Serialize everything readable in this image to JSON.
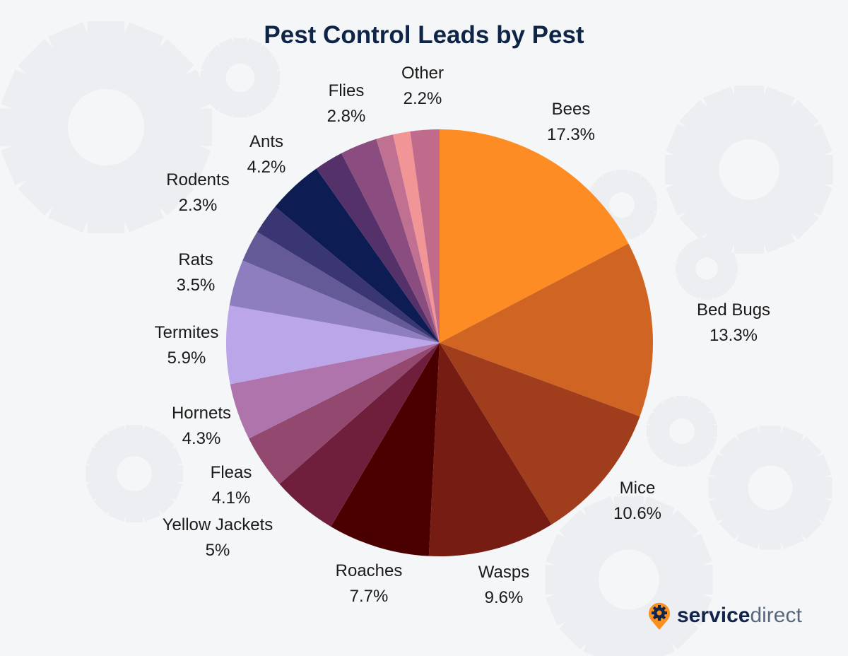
{
  "chart_data": {
    "type": "pie",
    "title": "Pest Control Leads by Pest",
    "start": "top",
    "direction": "clockwise",
    "slices": [
      {
        "label": "Bees",
        "value": 17.3,
        "value_label": "17.3%",
        "color": "#fd8c25"
      },
      {
        "label": "Bed Bugs",
        "value": 13.3,
        "value_label": "13.3%",
        "color": "#d06423"
      },
      {
        "label": "Mice",
        "value": 10.6,
        "value_label": "10.6%",
        "color": "#a03d1c"
      },
      {
        "label": "Wasps",
        "value": 9.6,
        "value_label": "9.6%",
        "color": "#771c13"
      },
      {
        "label": "Roaches",
        "value": 7.7,
        "value_label": "7.7%",
        "color": "#4b0000"
      },
      {
        "label": "Yellow Jackets",
        "value": 5,
        "value_label": "5%",
        "color": "#6f1f3b"
      },
      {
        "label": "Fleas",
        "value": 4.1,
        "value_label": "4.1%",
        "color": "#934870"
      },
      {
        "label": "Hornets",
        "value": 4.3,
        "value_label": "4.3%",
        "color": "#ae74ab"
      },
      {
        "label": "Termites",
        "value": 5.9,
        "value_label": "5.9%",
        "color": "#bba6ea"
      },
      {
        "label": "Rats",
        "value": 3.5,
        "value_label": "3.5%",
        "color": "#8e7ec0"
      },
      {
        "label": null,
        "value": 2.4,
        "value_label": null,
        "color": "#645a98"
      },
      {
        "label": "Rodents",
        "value": 2.3,
        "value_label": "2.3%",
        "color": "#3a3673"
      },
      {
        "label": "Ants",
        "value": 4.2,
        "value_label": "4.2%",
        "color": "#0d1c52"
      },
      {
        "label": null,
        "value": 2.2,
        "value_label": null,
        "color": "#55316a"
      },
      {
        "label": "Flies",
        "value": 2.8,
        "value_label": "2.8%",
        "color": "#8b4d80"
      },
      {
        "label": null,
        "value": 1.3,
        "value_label": null,
        "color": "#c07090"
      },
      {
        "label": null,
        "value": 1.3,
        "value_label": null,
        "color": "#f19596"
      },
      {
        "label": "Other",
        "value": 2.2,
        "value_label": "2.2%",
        "color": "#c06a8c"
      }
    ]
  },
  "logo": {
    "text_bold": "service",
    "text_light": "direct",
    "accent": "#f7901e"
  }
}
